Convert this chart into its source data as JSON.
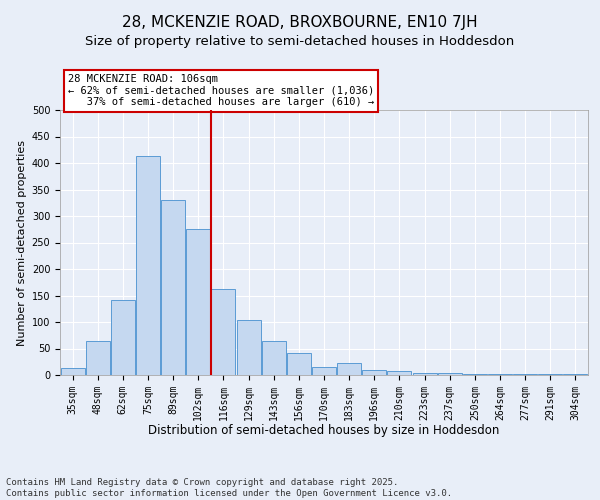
{
  "title": "28, MCKENZIE ROAD, BROXBOURNE, EN10 7JH",
  "subtitle": "Size of property relative to semi-detached houses in Hoddesdon",
  "xlabel": "Distribution of semi-detached houses by size in Hoddesdon",
  "ylabel": "Number of semi-detached properties",
  "bar_labels": [
    "35sqm",
    "48sqm",
    "62sqm",
    "75sqm",
    "89sqm",
    "102sqm",
    "116sqm",
    "129sqm",
    "143sqm",
    "156sqm",
    "170sqm",
    "183sqm",
    "196sqm",
    "210sqm",
    "223sqm",
    "237sqm",
    "250sqm",
    "264sqm",
    "277sqm",
    "291sqm",
    "304sqm"
  ],
  "bar_values": [
    14,
    65,
    142,
    413,
    330,
    276,
    163,
    103,
    64,
    41,
    15,
    23,
    10,
    7,
    3,
    3,
    1,
    1,
    1,
    1,
    1
  ],
  "bar_color": "#c5d8f0",
  "bar_edge_color": "#5b9bd5",
  "property_line_x": 5.5,
  "annotation_text": "28 MCKENZIE ROAD: 106sqm\n← 62% of semi-detached houses are smaller (1,036)\n   37% of semi-detached houses are larger (610) →",
  "annotation_box_color": "#ffffff",
  "annotation_box_edge_color": "#cc0000",
  "vline_color": "#cc0000",
  "ylim": [
    0,
    500
  ],
  "yticks": [
    0,
    50,
    100,
    150,
    200,
    250,
    300,
    350,
    400,
    450,
    500
  ],
  "footnote": "Contains HM Land Registry data © Crown copyright and database right 2025.\nContains public sector information licensed under the Open Government Licence v3.0.",
  "bg_color": "#e8eef8",
  "grid_color": "#ffffff",
  "title_fontsize": 11,
  "xlabel_fontsize": 8.5,
  "ylabel_fontsize": 8,
  "tick_fontsize": 7,
  "annot_fontsize": 7.5,
  "footnote_fontsize": 6.5
}
